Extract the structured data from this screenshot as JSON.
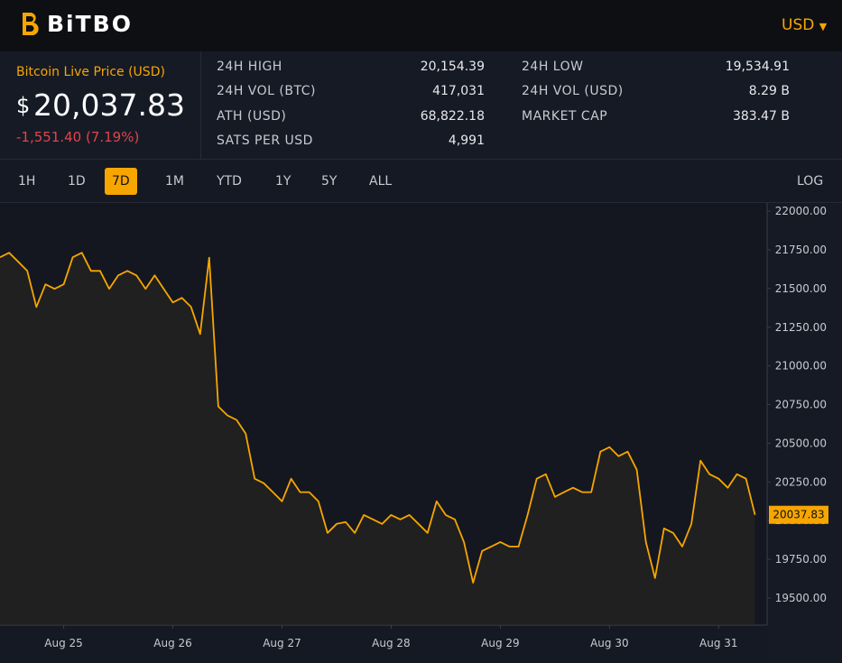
{
  "header": {
    "logo": "BiTBO",
    "currency": "USD"
  },
  "price": {
    "label": "Bitcoin Live Price (USD)",
    "symbol": "$",
    "value": "20,037.83",
    "change": "-1,551.40 (7.19%)"
  },
  "stats": [
    {
      "label": "24H HIGH",
      "value": "20,154.39"
    },
    {
      "label": "24H LOW",
      "value": "19,534.91"
    },
    {
      "label": "24H VOL (BTC)",
      "value": "417,031"
    },
    {
      "label": "24H VOL (USD)",
      "value": "8.29 B"
    },
    {
      "label": "ATH (USD)",
      "value": "68,822.18"
    },
    {
      "label": "MARKET CAP",
      "value": "383.47 B"
    },
    {
      "label": "SATS PER USD",
      "value": "4,991"
    }
  ],
  "tabs": [
    "1H",
    "1D",
    "7D",
    "1M",
    "YTD",
    "1Y",
    "5Y",
    "ALL"
  ],
  "log": "LOG",
  "chart_data": {
    "type": "line",
    "color": "#f7a600",
    "grid": false,
    "categories": [
      null,
      null,
      null,
      null,
      null,
      null,
      null,
      "Aug 25",
      null,
      null,
      null,
      null,
      null,
      null,
      null,
      null,
      null,
      null,
      null,
      "Aug 26",
      null,
      null,
      null,
      null,
      null,
      null,
      null,
      null,
      null,
      null,
      null,
      "Aug 27",
      null,
      null,
      null,
      null,
      null,
      null,
      null,
      null,
      null,
      null,
      null,
      "Aug 28",
      null,
      null,
      null,
      null,
      null,
      null,
      null,
      null,
      null,
      null,
      null,
      "Aug 29",
      null,
      null,
      null,
      null,
      null,
      null,
      null,
      null,
      null,
      null,
      null,
      "Aug 30",
      null,
      null,
      null,
      null,
      null,
      null,
      null,
      null,
      null,
      null,
      null,
      "Aug 31",
      null,
      null,
      null,
      null
    ],
    "values": [
      21702,
      21731,
      21673,
      21614,
      21381,
      21527,
      21498,
      21527,
      21702,
      21731,
      21614,
      21614,
      21498,
      21585,
      21614,
      21585,
      21498,
      21585,
      21498,
      21410,
      21440,
      21381,
      21206,
      21700,
      20738,
      20680,
      20651,
      20563,
      20271,
      20242,
      20184,
      20125,
      20271,
      20184,
      20184,
      20125,
      19921,
      19979,
      19991,
      19921,
      20037,
      20008,
      19979,
      20037,
      20008,
      20037,
      19979,
      19921,
      20125,
      20037,
      20008,
      19862,
      19599,
      19804,
      19833,
      19862,
      19833,
      19833,
      20037,
      20271,
      20300,
      20154,
      20184,
      20213,
      20184,
      20184,
      20446,
      20475,
      20417,
      20446,
      20329,
      19862,
      19629,
      19950,
      19921,
      19833,
      19979,
      20388,
      20300,
      20271,
      20213,
      20300,
      20271,
      20037.83
    ],
    "ylim": [
      19325,
      22053
    ],
    "yticks": [
      {
        "value": 19500,
        "label": "19500.00"
      },
      {
        "value": 19750,
        "label": "19750.00"
      },
      {
        "value": 20000,
        "label": "20000.00"
      },
      {
        "value": 20250,
        "label": "20250.00"
      },
      {
        "value": 20500,
        "label": "20500.00"
      },
      {
        "value": 20750,
        "label": "20750.00"
      },
      {
        "value": 21000,
        "label": "21000.00"
      },
      {
        "value": 21250,
        "label": "21250.00"
      },
      {
        "value": 21500,
        "label": "21500.00"
      },
      {
        "value": 21750,
        "label": "21750.00"
      },
      {
        "value": 22000,
        "label": "22000.00"
      }
    ]
  }
}
